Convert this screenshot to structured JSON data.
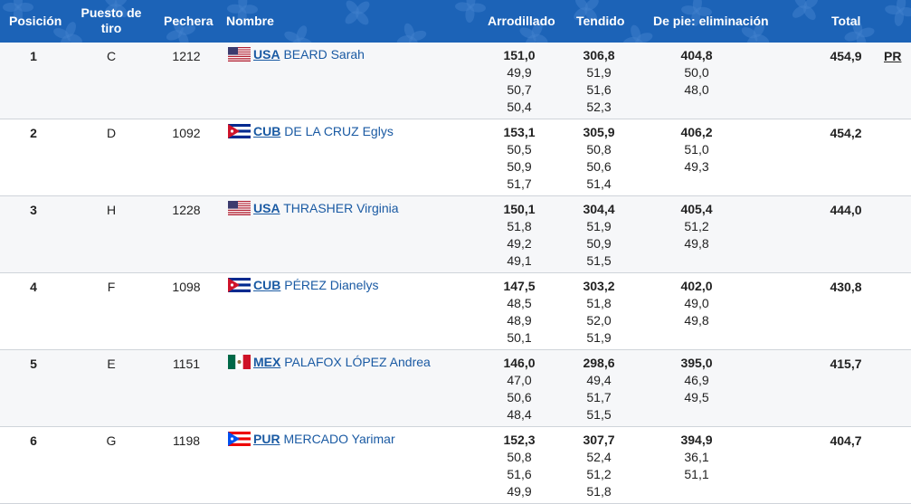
{
  "header": {
    "position": "Posición",
    "station": "Puesto de tiro",
    "bib": "Pechera",
    "name": "Nombre",
    "kneeling": "Arrodillado",
    "prone": "Tendido",
    "standing": "De pie: eliminación",
    "total": "Total"
  },
  "colors": {
    "header_bg": "#1c63b7",
    "link": "#1a5aa3",
    "row_alt": "#f6f7f9"
  },
  "rows": [
    {
      "pos": "1",
      "station": "C",
      "bib": "1212",
      "flag": "usa-flag",
      "code": "USA",
      "name": "BEARD Sarah",
      "kneeling": [
        "151,0",
        "49,9",
        "50,7",
        "50,4"
      ],
      "prone": [
        "306,8",
        "51,9",
        "51,6",
        "52,3"
      ],
      "standing": [
        "404,8",
        "50,0",
        "48,0"
      ],
      "total": "454,9",
      "note": "PR"
    },
    {
      "pos": "2",
      "station": "D",
      "bib": "1092",
      "flag": "cub-flag",
      "code": "CUB",
      "name": "DE LA CRUZ Eglys",
      "kneeling": [
        "153,1",
        "50,5",
        "50,9",
        "51,7"
      ],
      "prone": [
        "305,9",
        "50,8",
        "50,6",
        "51,4"
      ],
      "standing": [
        "406,2",
        "51,0",
        "49,3"
      ],
      "total": "454,2",
      "note": ""
    },
    {
      "pos": "3",
      "station": "H",
      "bib": "1228",
      "flag": "usa-flag",
      "code": "USA",
      "name": "THRASHER Virginia",
      "kneeling": [
        "150,1",
        "51,8",
        "49,2",
        "49,1"
      ],
      "prone": [
        "304,4",
        "51,9",
        "50,9",
        "51,5"
      ],
      "standing": [
        "405,4",
        "51,2",
        "49,8"
      ],
      "total": "444,0",
      "note": ""
    },
    {
      "pos": "4",
      "station": "F",
      "bib": "1098",
      "flag": "cub-flag",
      "code": "CUB",
      "name": "PÉREZ Dianelys",
      "kneeling": [
        "147,5",
        "48,5",
        "48,9",
        "50,1"
      ],
      "prone": [
        "303,2",
        "51,8",
        "52,0",
        "51,9"
      ],
      "standing": [
        "402,0",
        "49,0",
        "49,8"
      ],
      "total": "430,8",
      "note": ""
    },
    {
      "pos": "5",
      "station": "E",
      "bib": "1151",
      "flag": "mex-flag",
      "code": "MEX",
      "name": "PALAFOX LÓPEZ Andrea",
      "kneeling": [
        "146,0",
        "47,0",
        "50,6",
        "48,4"
      ],
      "prone": [
        "298,6",
        "49,4",
        "51,7",
        "51,5"
      ],
      "standing": [
        "395,0",
        "46,9",
        "49,5"
      ],
      "total": "415,7",
      "note": ""
    },
    {
      "pos": "6",
      "station": "G",
      "bib": "1198",
      "flag": "pur-flag",
      "code": "PUR",
      "name": "MERCADO Yarimar",
      "kneeling": [
        "152,3",
        "50,8",
        "51,6",
        "49,9"
      ],
      "prone": [
        "307,7",
        "52,4",
        "51,2",
        "51,8"
      ],
      "standing": [
        "394,9",
        "36,1",
        "51,1"
      ],
      "total": "404,7",
      "note": ""
    }
  ]
}
